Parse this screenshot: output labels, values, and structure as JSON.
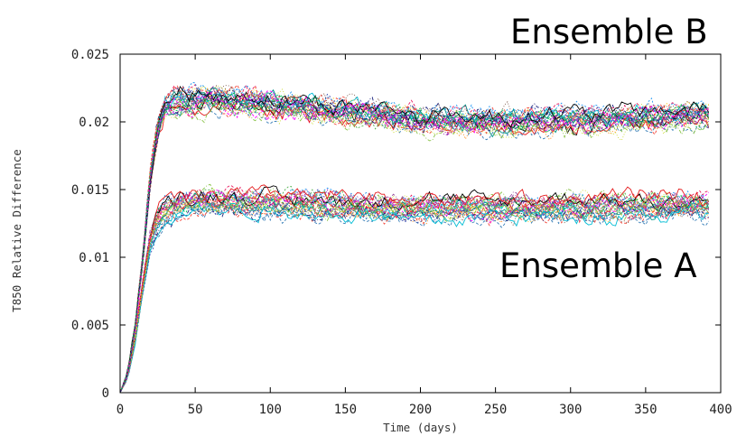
{
  "chart_data": {
    "type": "line",
    "title": "",
    "xlabel": "Time (days)",
    "ylabel": "T850 Relative Difference",
    "xlim": [
      0,
      400
    ],
    "ylim": [
      0,
      0.025
    ],
    "x_ticks": [
      "0",
      "50",
      "100",
      "150",
      "200",
      "250",
      "300",
      "350",
      "400"
    ],
    "y_ticks": [
      "0",
      "0.005",
      "0.01",
      "0.015",
      "0.02",
      "0.025"
    ],
    "grid": false,
    "legend": "none",
    "x_extent": [
      0,
      392
    ],
    "series": [
      {
        "annotation": "Ensemble A",
        "members_drawn": 30,
        "spread": 0.0011,
        "x": [
          0,
          5,
          10,
          15,
          20,
          25,
          30,
          40,
          50,
          60,
          75,
          100,
          125,
          150,
          175,
          200,
          250,
          300,
          350,
          390
        ],
        "mean": [
          0,
          0.0012,
          0.004,
          0.0078,
          0.0112,
          0.0128,
          0.0135,
          0.0139,
          0.0141,
          0.0142,
          0.0141,
          0.014,
          0.0139,
          0.0138,
          0.0137,
          0.0136,
          0.0136,
          0.0137,
          0.0138,
          0.0139
        ]
      },
      {
        "annotation": "Ensemble B",
        "members_drawn": 30,
        "spread": 0.0012,
        "x": [
          0,
          5,
          10,
          15,
          20,
          25,
          30,
          40,
          50,
          60,
          75,
          100,
          125,
          150,
          175,
          200,
          250,
          300,
          350,
          390
        ],
        "mean": [
          0,
          0.0014,
          0.0048,
          0.0098,
          0.0158,
          0.0195,
          0.021,
          0.0215,
          0.0216,
          0.0216,
          0.0215,
          0.0213,
          0.021,
          0.0207,
          0.0204,
          0.0201,
          0.02,
          0.0201,
          0.0203,
          0.0205
        ]
      }
    ],
    "colors": [
      "#e41a1c",
      "#377eb8",
      "#4daf4a",
      "#984ea3",
      "#ff7f00",
      "#00bcd4",
      "#e91e63",
      "#3f51b5",
      "#8bc34a",
      "#ffc107",
      "#009688",
      "#f44336",
      "#2196f3",
      "#9c27b0",
      "#cddc39",
      "#000000",
      "#ff00ff",
      "#00c853",
      "#1a237e",
      "#795548"
    ]
  }
}
